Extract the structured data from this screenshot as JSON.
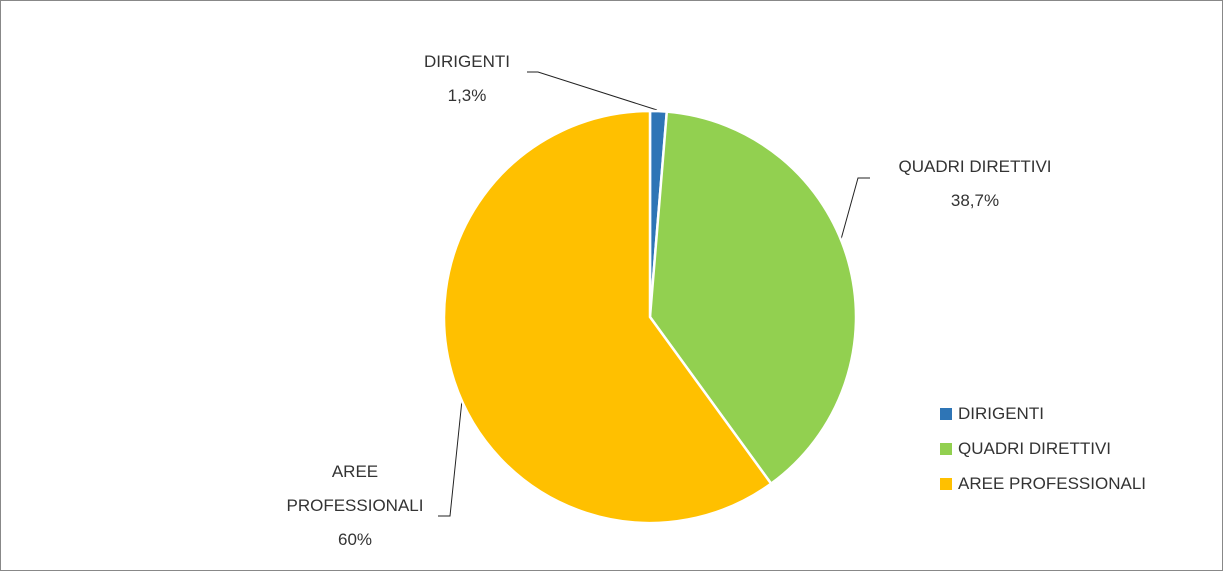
{
  "chart_data": {
    "type": "pie",
    "categories": [
      "DIRIGENTI",
      "QUADRI DIRETTIVI",
      "AREE PROFESSIONALI"
    ],
    "values": [
      1.3,
      38.7,
      60
    ],
    "value_labels": [
      "1,3%",
      "38,7%",
      "60%"
    ],
    "colors": [
      "#2e75b6",
      "#92d050",
      "#ffc000"
    ],
    "legend": "right"
  }
}
